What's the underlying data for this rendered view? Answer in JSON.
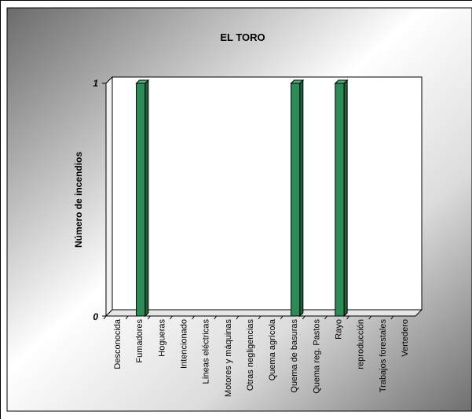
{
  "colors": {
    "bar_front": "#2e8b57",
    "bar_side": "#1f5f3c",
    "bar_top": "#4fb07b",
    "plot_bg": "#ffffff"
  },
  "chart_data": {
    "type": "bar",
    "title": "EL TORO",
    "xlabel": "",
    "ylabel": "Número de incendios",
    "ylim": [
      0,
      1
    ],
    "yticks": [
      "0",
      "1"
    ],
    "grid": false,
    "legend": "none",
    "categories": [
      "Desconocida",
      "Fumadores",
      "Hogueras",
      "Intencionado",
      "Líneas eléctricas",
      "Motores y máquinas",
      "Otras negligencias",
      "Quema agrícola",
      "Quema de basuras",
      "Quema reg. Pastos",
      "Rayo",
      "reproducción",
      "Trabajos forestales",
      "Vertedero"
    ],
    "values": [
      0,
      1,
      0,
      0,
      0,
      0,
      0,
      0,
      1,
      0,
      1,
      0,
      0,
      0
    ]
  }
}
